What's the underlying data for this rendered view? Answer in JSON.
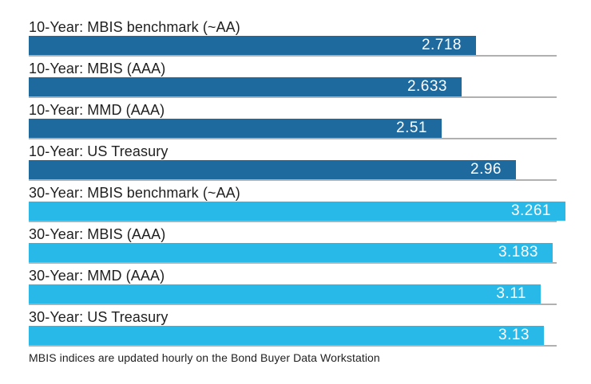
{
  "chart_data": {
    "type": "bar",
    "orientation": "horizontal",
    "title": "",
    "xlabel": "",
    "ylabel": "",
    "categories": [
      "10-Year: MBIS benchmark (~AA)",
      "10-Year: MBIS (AAA)",
      "10-Year: MMD (AAA)",
      "10-Year: US Treasury",
      "30-Year: MBIS benchmark (~AA)",
      "30-Year: MBIS (AAA)",
      "30-Year: MMD (AAA)",
      "30-Year: US Treasury"
    ],
    "values": [
      2.718,
      2.633,
      2.51,
      2.96,
      3.261,
      3.183,
      3.11,
      3.13
    ],
    "value_labels": [
      "2.718",
      "2.633",
      "2.51",
      "2.96",
      "3.261",
      "3.183",
      "3.11",
      "3.13"
    ],
    "groups": [
      "10-Year",
      "10-Year",
      "10-Year",
      "10-Year",
      "30-Year",
      "30-Year",
      "30-Year",
      "30-Year"
    ],
    "series": [
      {
        "name": "10-Year",
        "color": "#1e6a9f",
        "values": [
          2.718,
          2.633,
          2.51,
          2.96
        ]
      },
      {
        "name": "30-Year",
        "color": "#29b9e8",
        "values": [
          3.261,
          3.183,
          3.11,
          3.13
        ]
      }
    ],
    "colors": {
      "10-Year": "#1e6a9f",
      "30-Year": "#29b9e8",
      "baseline": "#b0b0b0",
      "label_text": "#1f1f1f",
      "value_text": "#ffffff"
    },
    "xlim": [
      0,
      3.42
    ],
    "grid": false,
    "legend": false,
    "value_label_position": "inside-right",
    "category_label_position": "above-bar",
    "footnote": "MBIS indices are updated hourly on the Bond Buyer Data Workstation"
  }
}
